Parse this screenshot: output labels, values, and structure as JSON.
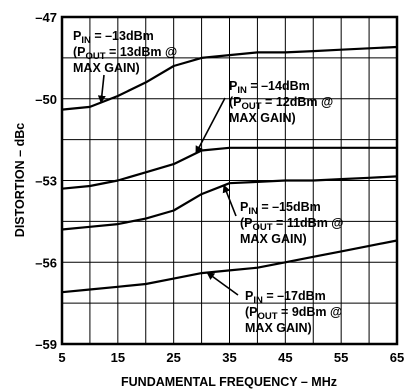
{
  "chart_data": {
    "type": "line",
    "xlabel": "FUNDAMENTAL FREQUENCY – MHz",
    "ylabel": "DISTORTION – dBc",
    "xlim": [
      5,
      65
    ],
    "ylim": [
      -59,
      -47
    ],
    "x_ticks": [
      "5",
      "15",
      "25",
      "35",
      "45",
      "55",
      "65"
    ],
    "y_ticks": [
      "–47",
      "–50",
      "–53",
      "–56",
      "–59"
    ],
    "y_tick_values": [
      -47,
      -50,
      -53,
      -56,
      -59
    ],
    "grid": true,
    "series": [
      {
        "x": [
          5,
          10,
          15,
          20,
          25,
          30,
          35,
          40,
          45,
          50,
          55,
          60,
          65
        ],
        "y": [
          -50.4,
          -50.3,
          -49.9,
          -49.4,
          -48.8,
          -48.5,
          -48.4,
          -48.3,
          -48.3,
          -48.25,
          -48.2,
          -48.15,
          -48.1
        ]
      },
      {
        "x": [
          5,
          10,
          15,
          20,
          25,
          30,
          35,
          40,
          45,
          50,
          55,
          60,
          65
        ],
        "y": [
          -53.3,
          -53.2,
          -53.0,
          -52.7,
          -52.4,
          -51.9,
          -51.8,
          -51.8,
          -51.8,
          -51.8,
          -51.8,
          -51.8,
          -51.8
        ]
      },
      {
        "x": [
          5,
          10,
          15,
          20,
          25,
          30,
          35,
          40,
          45,
          50,
          55,
          60,
          65
        ],
        "y": [
          -54.8,
          -54.7,
          -54.6,
          -54.4,
          -54.1,
          -53.5,
          -53.1,
          -53.05,
          -53.0,
          -53.0,
          -52.95,
          -52.9,
          -52.85
        ]
      },
      {
        "x": [
          5,
          10,
          15,
          20,
          25,
          30,
          35,
          40,
          45,
          50,
          55,
          60,
          65
        ],
        "y": [
          -57.1,
          -57.0,
          -56.9,
          -56.8,
          -56.6,
          -56.4,
          -56.3,
          -56.2,
          -56.0,
          -55.8,
          -55.6,
          -55.4,
          -55.2
        ]
      }
    ],
    "annotations": [
      {
        "pin": "–13dBm",
        "pout": "13dBm @",
        "gain": "MAX GAIN)"
      },
      {
        "pin": "–14dBm",
        "pout": "12dBm @",
        "gain": "MAX GAIN)"
      },
      {
        "pin": "–15dBm",
        "pout": "11dBm @",
        "gain": "MAX GAIN)"
      },
      {
        "pin": "–17dBm",
        "pout": "9dBm @",
        "gain": "MAX GAIN)"
      }
    ]
  }
}
